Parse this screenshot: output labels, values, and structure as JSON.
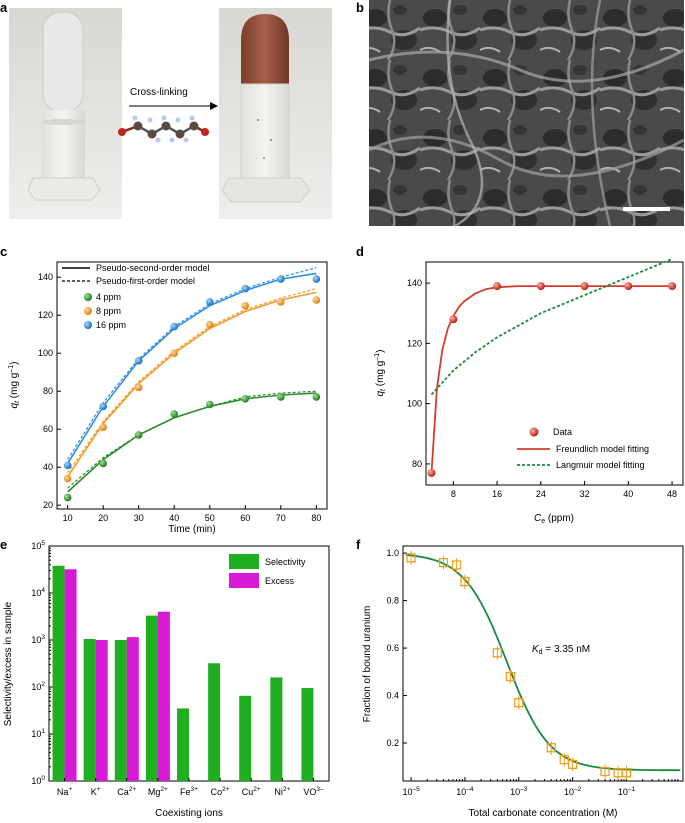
{
  "panel_labels": {
    "a": "a",
    "b": "b",
    "c": "c",
    "d": "d",
    "e": "e",
    "f": "f"
  },
  "panel_a": {
    "arrow_label": "Cross-linking"
  },
  "colors": {
    "green": "#2e8b2e",
    "orange": "#f39a2a",
    "blue": "#2f8fe0",
    "red": "#d73a2e",
    "dkgreen": "#1a8a3a",
    "bar_green": "#1fae1f",
    "bar_magenta": "#d61ad6",
    "f_marker": "#f0a020"
  },
  "chart_data": [
    {
      "id": "c",
      "type": "scatter",
      "xlabel": "Time (min)",
      "ylabel_main": "q",
      "ylabel_sub": "t",
      "ylabel_unit": " (mg g",
      "ylabel_exp": "–1",
      "ylabel_close": ")",
      "xlim": [
        7,
        83
      ],
      "ylim": [
        18,
        148
      ],
      "xticks": [
        10,
        20,
        30,
        40,
        50,
        60,
        70,
        80
      ],
      "yticks": [
        20,
        40,
        60,
        80,
        100,
        120,
        140
      ],
      "legend": {
        "pso": "Pseudo-second-order model",
        "pfo": "Pseudo-first-order model"
      },
      "series": [
        {
          "name": "4 ppm",
          "color_key": "green",
          "x": [
            10,
            20,
            30,
            40,
            50,
            60,
            70,
            80
          ],
          "y": [
            24,
            42,
            57,
            68,
            73,
            76,
            77,
            77
          ],
          "pso": [
            27,
            44,
            57,
            66,
            72,
            76,
            78,
            79
          ],
          "pfo": [
            29,
            45,
            57,
            66,
            72,
            77,
            79,
            80
          ]
        },
        {
          "name": "8 ppm",
          "color_key": "orange",
          "x": [
            10,
            20,
            30,
            40,
            50,
            60,
            70,
            80
          ],
          "y": [
            34,
            61,
            82,
            100,
            115,
            125,
            127,
            128
          ],
          "pso": [
            35,
            63,
            84,
            100,
            113,
            122,
            128,
            132
          ],
          "pfo": [
            37,
            64,
            85,
            101,
            114,
            123,
            129,
            134
          ]
        },
        {
          "name": "16 ppm",
          "color_key": "blue",
          "x": [
            10,
            20,
            30,
            40,
            50,
            60,
            70,
            80
          ],
          "y": [
            41,
            72,
            96,
            114,
            127,
            134,
            139,
            139
          ],
          "pso": [
            42,
            72,
            96,
            113,
            125,
            133,
            139,
            142
          ],
          "pfo": [
            44,
            74,
            97,
            114,
            126,
            134,
            140,
            145
          ]
        }
      ]
    },
    {
      "id": "d",
      "type": "scatter",
      "xlabel_main": "C",
      "xlabel_sub": "e",
      "xlabel_unit": " (ppm)",
      "ylabel_main": "q",
      "ylabel_sub": "t",
      "ylabel_unit": " (mg g",
      "ylabel_exp": "–1",
      "ylabel_close": ")",
      "xlim": [
        3,
        50
      ],
      "ylim": [
        73,
        147
      ],
      "xticks": [
        8,
        16,
        24,
        32,
        40,
        48
      ],
      "yticks": [
        80,
        100,
        120,
        140
      ],
      "legend": {
        "data": "Data",
        "freundlich": "Freundlich model fitting",
        "langmuir": "Langmuir model fitting"
      },
      "data_x": [
        4,
        8,
        16,
        24,
        32,
        40,
        48
      ],
      "data_y": [
        77,
        128,
        139,
        139,
        139,
        139,
        139
      ],
      "freundlich_x": [
        4,
        5,
        6,
        7,
        8,
        9,
        10,
        12,
        14,
        16,
        20,
        24,
        32,
        40,
        48
      ],
      "freundlich_y": [
        77,
        105,
        118,
        125,
        129,
        132,
        134,
        136.5,
        138,
        138.6,
        139,
        139,
        139,
        139,
        139
      ],
      "langmuir_x": [
        4,
        8,
        12,
        16,
        20,
        24,
        28,
        32,
        36,
        40,
        44,
        48
      ],
      "langmuir_y": [
        103,
        111,
        117,
        122,
        126,
        130,
        133,
        136,
        139,
        142,
        145,
        148
      ]
    },
    {
      "id": "e",
      "type": "bar",
      "xlabel": "Coexisting ions",
      "ylabel": "Selectivity/excess in sample",
      "ylog_range": [
        0,
        5
      ],
      "ytick_labels": [
        {
          "base": "10",
          "exp": "0"
        },
        {
          "base": "10",
          "exp": "1"
        },
        {
          "base": "10",
          "exp": "2"
        },
        {
          "base": "10",
          "exp": "3"
        },
        {
          "base": "10",
          "exp": "4"
        },
        {
          "base": "10",
          "exp": "5"
        }
      ],
      "categories": [
        {
          "base": "Na",
          "sup": "+"
        },
        {
          "base": "K",
          "sup": "+"
        },
        {
          "base": "Ca",
          "sup": "2+"
        },
        {
          "base": "Mg",
          "sup": "2+"
        },
        {
          "base": "Fe",
          "sup": "3+"
        },
        {
          "base": "Co",
          "sup": "2+"
        },
        {
          "base": "Cu",
          "sup": "2+"
        },
        {
          "base": "Ni",
          "sup": "2+"
        },
        {
          "base": "VO",
          "sup": "3–"
        }
      ],
      "series": [
        {
          "name": "Selectivity",
          "color_key": "bar_green",
          "values": [
            38000,
            1050,
            1000,
            3300,
            35,
            320,
            65,
            160,
            95
          ]
        },
        {
          "name": "Excess",
          "color_key": "bar_magenta",
          "values": [
            32000,
            1000,
            1150,
            4000,
            null,
            null,
            null,
            null,
            null
          ]
        }
      ]
    },
    {
      "id": "f",
      "type": "scatter",
      "xlabel": "Total carbonate concentration (M)",
      "ylabel": "Fraction of bound uranium",
      "xlog_range": [
        -5.15,
        0.05
      ],
      "ylim": [
        0.04,
        1.03
      ],
      "xtick_labels": [
        {
          "base": "10",
          "exp": "–5"
        },
        {
          "base": "10",
          "exp": "–4"
        },
        {
          "base": "10",
          "exp": "–3"
        },
        {
          "base": "10",
          "exp": "–2"
        },
        {
          "base": "10",
          "exp": "–1"
        }
      ],
      "yticks": [
        0.2,
        0.4,
        0.6,
        0.8,
        1.0
      ],
      "ytick_text": [
        "0.2",
        "0.4",
        "0.6",
        "0.8",
        "1.0"
      ],
      "annotation": {
        "main": "K",
        "sub": "d",
        "rest": " = 3.35 nM"
      },
      "points_x": [
        1e-05,
        4e-05,
        7e-05,
        0.0001,
        0.0004,
        0.0007,
        0.001,
        0.004,
        0.007,
        0.01,
        0.04,
        0.07,
        0.1
      ],
      "points_y": [
        0.98,
        0.96,
        0.95,
        0.88,
        0.58,
        0.48,
        0.37,
        0.18,
        0.13,
        0.11,
        0.08,
        0.075,
        0.075
      ],
      "fit": {
        "top": 1.0,
        "bottom": 0.085,
        "ec50": 0.0006,
        "hill": 1.1
      }
    }
  ]
}
